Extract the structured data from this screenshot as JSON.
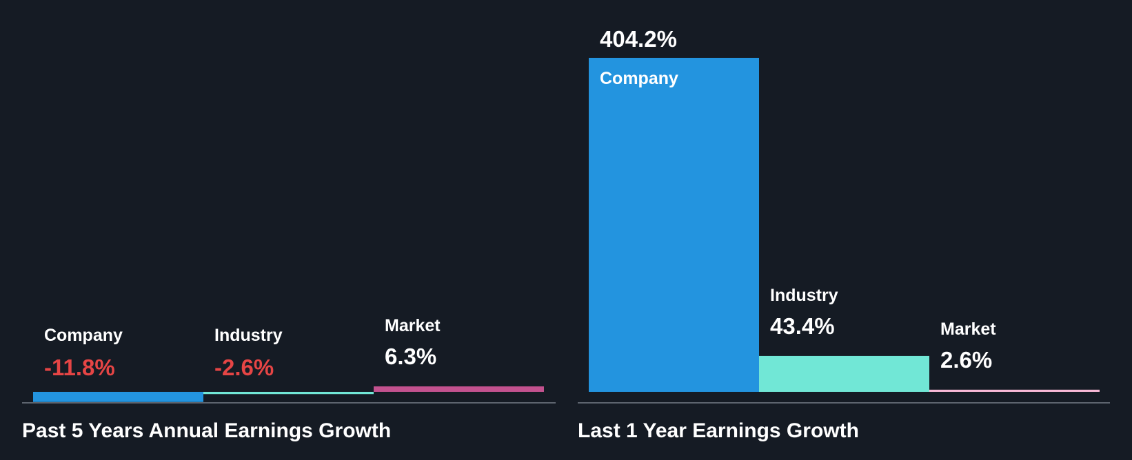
{
  "chart_data": [
    {
      "type": "bar",
      "title": "Past 5 Years Annual Earnings Growth",
      "categories": [
        "Company",
        "Industry",
        "Market"
      ],
      "values": [
        -11.8,
        -2.6,
        6.3
      ],
      "value_labels": [
        "-11.8%",
        "-2.6%",
        "6.3%"
      ],
      "colors": [
        "#2394df",
        "#71e7d6",
        "#c3528f"
      ],
      "negative_label_color": "#e64545",
      "grid": false,
      "legend": "none"
    },
    {
      "type": "bar",
      "title": "Last 1 Year Earnings Growth",
      "categories": [
        "Company",
        "Industry",
        "Market"
      ],
      "values": [
        404.2,
        43.4,
        2.6
      ],
      "value_labels": [
        "404.2%",
        "43.4%",
        "2.6%"
      ],
      "colors": [
        "#2394df",
        "#71e7d6",
        "#f7b8d5"
      ],
      "negative_label_color": "#e64545",
      "grid": false,
      "legend": "none"
    }
  ]
}
